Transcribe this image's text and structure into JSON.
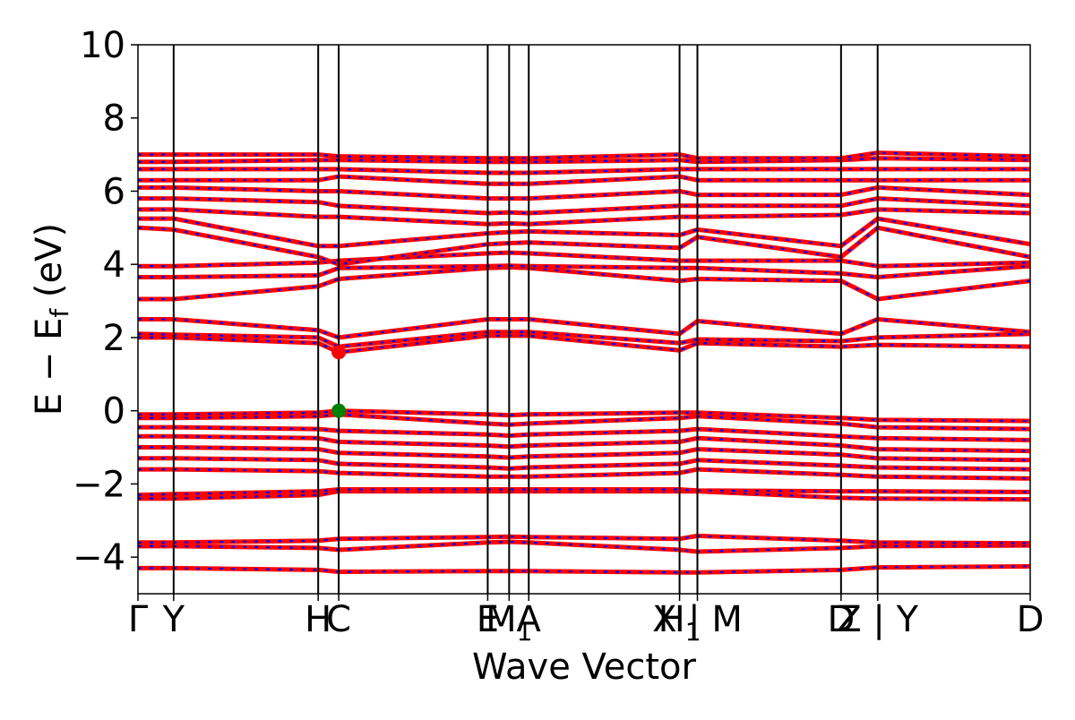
{
  "chart_data": {
    "type": "line",
    "title": "",
    "xlabel": "Wave Vector",
    "ylabel_main": "E − E",
    "ylabel_sub": "f",
    "ylabel_unit": " (eV)",
    "ylim": [
      -5,
      10
    ],
    "yticks": [
      -4,
      -2,
      0,
      2,
      4,
      6,
      8,
      10
    ],
    "ytick_labels": [
      "−4",
      "−2",
      "0",
      "2",
      "4",
      "6",
      "8",
      "10"
    ],
    "grid": false,
    "colors": {
      "spin_up": "#ff0000",
      "spin_down": "#0000ff",
      "vbm_marker": "#008000",
      "cbm_marker": "#ff0000",
      "divider": "#000000"
    },
    "kpoints": [
      {
        "label": "Γ",
        "x": 0.0
      },
      {
        "label": "Y",
        "x": 0.04
      },
      {
        "label": "H",
        "x": 0.202
      },
      {
        "label": "C",
        "x": 0.225
      },
      {
        "label": "E",
        "x": 0.392
      },
      {
        "label": "M",
        "sub": "1",
        "x": 0.416
      },
      {
        "label": "A",
        "x": 0.438
      },
      {
        "label": "H",
        "sub": "1",
        "x": 0.607
      },
      {
        "label": "X | M",
        "x": 0.627
      },
      {
        "label": "D",
        "x": 0.788
      },
      {
        "label": "Z | Y",
        "x": 0.829
      },
      {
        "label": "D",
        "x": 1.0
      }
    ],
    "x_range": [
      0.0,
      1.0
    ],
    "vbm": {
      "x": 0.225,
      "energy": 0.0
    },
    "cbm": {
      "x": 0.225,
      "energy": 1.6
    },
    "series": [
      {
        "energies": [
          -4.3,
          -4.3,
          -4.35,
          -4.4,
          -4.38,
          -4.38,
          -4.38,
          -4.42,
          -4.42,
          -4.35,
          -4.28,
          -4.25
        ]
      },
      {
        "energies": [
          -3.7,
          -3.7,
          -3.75,
          -3.8,
          -3.6,
          -3.58,
          -3.6,
          -3.8,
          -3.85,
          -3.75,
          -3.7,
          -3.68
        ]
      },
      {
        "energies": [
          -3.6,
          -3.6,
          -3.55,
          -3.5,
          -3.45,
          -3.44,
          -3.45,
          -3.5,
          -3.42,
          -3.55,
          -3.6,
          -3.62
        ]
      },
      {
        "energies": [
          -2.4,
          -2.4,
          -2.3,
          -2.2,
          -2.2,
          -2.2,
          -2.2,
          -2.2,
          -2.2,
          -2.38,
          -2.4,
          -2.42
        ]
      },
      {
        "energies": [
          -2.3,
          -2.28,
          -2.2,
          -2.15,
          -2.15,
          -2.15,
          -2.15,
          -2.15,
          -2.18,
          -2.2,
          -2.2,
          -2.22
        ]
      },
      {
        "energies": [
          -1.6,
          -1.6,
          -1.65,
          -1.7,
          -1.8,
          -1.8,
          -1.8,
          -1.7,
          -1.6,
          -1.75,
          -1.8,
          -1.85
        ]
      },
      {
        "energies": [
          -1.3,
          -1.3,
          -1.35,
          -1.45,
          -1.55,
          -1.58,
          -1.55,
          -1.45,
          -1.35,
          -1.5,
          -1.55,
          -1.6
        ]
      },
      {
        "energies": [
          -1.0,
          -1.0,
          -1.05,
          -1.15,
          -1.25,
          -1.28,
          -1.25,
          -1.15,
          -1.05,
          -1.2,
          -1.3,
          -1.35
        ]
      },
      {
        "energies": [
          -0.7,
          -0.7,
          -0.75,
          -0.85,
          -0.95,
          -0.98,
          -0.95,
          -0.85,
          -0.75,
          -0.95,
          -1.05,
          -1.1
        ]
      },
      {
        "energies": [
          -0.45,
          -0.45,
          -0.5,
          -0.55,
          -0.65,
          -0.68,
          -0.65,
          -0.55,
          -0.5,
          -0.7,
          -0.75,
          -0.8
        ]
      },
      {
        "energies": [
          -0.2,
          -0.2,
          -0.15,
          -0.1,
          -0.35,
          -0.38,
          -0.35,
          -0.2,
          -0.15,
          -0.35,
          -0.45,
          -0.5
        ]
      },
      {
        "energies": [
          -0.1,
          -0.1,
          -0.05,
          0.0,
          -0.1,
          -0.12,
          -0.1,
          -0.05,
          -0.05,
          -0.2,
          -0.25,
          -0.28
        ]
      },
      {
        "energies": [
          2.0,
          2.0,
          1.85,
          1.6,
          2.05,
          2.05,
          2.05,
          1.65,
          1.85,
          1.75,
          1.8,
          1.75
        ]
      },
      {
        "energies": [
          2.1,
          2.08,
          2.0,
          1.75,
          2.15,
          2.15,
          2.15,
          1.85,
          1.95,
          1.9,
          2.0,
          2.1
        ]
      },
      {
        "energies": [
          2.5,
          2.5,
          2.2,
          2.0,
          2.5,
          2.5,
          2.5,
          2.1,
          2.45,
          2.1,
          2.5,
          2.15
        ]
      },
      {
        "energies": [
          3.05,
          3.05,
          3.4,
          3.6,
          3.9,
          3.92,
          3.9,
          3.55,
          3.6,
          3.55,
          3.05,
          3.55
        ]
      },
      {
        "energies": [
          3.65,
          3.65,
          3.7,
          3.9,
          3.95,
          3.96,
          3.95,
          3.9,
          3.9,
          3.75,
          3.65,
          3.95
        ]
      },
      {
        "energies": [
          3.95,
          3.95,
          4.05,
          4.1,
          4.3,
          4.32,
          4.3,
          4.1,
          4.1,
          4.1,
          3.95,
          4.05
        ]
      },
      {
        "energies": [
          5.0,
          4.95,
          4.2,
          4.0,
          4.55,
          4.58,
          4.6,
          4.45,
          4.75,
          4.2,
          5.0,
          4.2
        ]
      },
      {
        "energies": [
          5.25,
          5.25,
          4.5,
          4.5,
          4.85,
          4.88,
          4.9,
          4.8,
          4.95,
          4.5,
          5.25,
          4.55
        ]
      },
      {
        "energies": [
          5.5,
          5.5,
          5.3,
          5.3,
          5.1,
          5.12,
          5.1,
          5.3,
          5.3,
          5.35,
          5.5,
          5.4
        ]
      },
      {
        "energies": [
          5.8,
          5.8,
          5.7,
          5.6,
          5.4,
          5.42,
          5.4,
          5.6,
          5.6,
          5.6,
          5.8,
          5.6
        ]
      },
      {
        "energies": [
          6.1,
          6.1,
          6.0,
          6.0,
          5.8,
          5.8,
          5.8,
          6.0,
          5.9,
          5.9,
          6.1,
          5.9
        ]
      },
      {
        "energies": [
          6.3,
          6.3,
          6.3,
          6.4,
          6.2,
          6.2,
          6.2,
          6.4,
          6.3,
          6.3,
          6.3,
          6.3
        ]
      },
      {
        "energies": [
          6.6,
          6.6,
          6.6,
          6.6,
          6.5,
          6.5,
          6.5,
          6.6,
          6.6,
          6.6,
          6.6,
          6.6
        ]
      },
      {
        "energies": [
          6.8,
          6.8,
          6.85,
          6.85,
          6.8,
          6.8,
          6.8,
          6.85,
          6.8,
          6.85,
          6.9,
          6.85
        ]
      },
      {
        "energies": [
          7.0,
          7.0,
          7.0,
          6.95,
          6.9,
          6.9,
          6.9,
          7.0,
          6.9,
          6.9,
          7.05,
          6.95
        ]
      }
    ]
  }
}
